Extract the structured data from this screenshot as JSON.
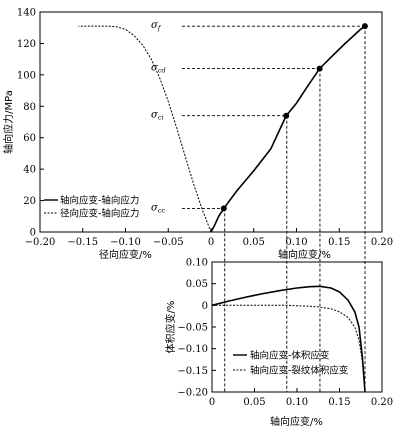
{
  "chart_data": [
    {
      "type": "line",
      "xlabel": "径向应变/%",
      "xlabel2": "轴向应变/%",
      "ylabel": "轴向应力/MPa",
      "xlim": [
        -0.2,
        0.2
      ],
      "ylim": [
        0,
        140
      ],
      "xticks": [
        "−0.20",
        "−0.15",
        "−0.10",
        "−0.05",
        "0",
        "0.05",
        "0.10",
        "0.15",
        "0.20"
      ],
      "yticks": [
        "0",
        "20",
        "40",
        "60",
        "80",
        "100",
        "120",
        "140"
      ],
      "grid": false,
      "legend_position": "bottom-left",
      "series": [
        {
          "name": "轴向应变-轴向应力",
          "style": "solid",
          "x": [
            0,
            0.004,
            0.009,
            0.015,
            0.03,
            0.05,
            0.07,
            0.088,
            0.1,
            0.112,
            0.127,
            0.14,
            0.155,
            0.165,
            0.175,
            0.18
          ],
          "y": [
            0,
            4,
            10,
            15,
            26,
            39,
            53,
            74,
            82,
            92,
            104,
            111,
            119,
            124,
            129,
            131
          ]
        },
        {
          "name": "径向应变-轴向应力",
          "style": "dashed",
          "x": [
            0,
            -0.01,
            -0.02,
            -0.03,
            -0.04,
            -0.05,
            -0.06,
            -0.07,
            -0.08,
            -0.09,
            -0.1,
            -0.11,
            -0.12,
            -0.13,
            -0.145,
            -0.155
          ],
          "y": [
            0,
            14,
            30,
            48,
            66,
            83,
            98,
            110,
            119,
            125,
            129,
            130.5,
            131,
            131,
            131,
            131
          ]
        }
      ],
      "markers": [
        {
          "label": "σ",
          "sub": "cc",
          "x": 0.015,
          "y": 15
        },
        {
          "label": "σ",
          "sub": "ci",
          "x": 0.088,
          "y": 74
        },
        {
          "label": "σ",
          "sub": "cd",
          "x": 0.127,
          "y": 104
        },
        {
          "label": "σ",
          "sub": "f",
          "x": 0.18,
          "y": 131
        }
      ]
    },
    {
      "type": "line",
      "xlabel": "轴向应变/%",
      "ylabel": "体积应变/%",
      "xlim": [
        0,
        0.2
      ],
      "ylim": [
        -0.2,
        0.1
      ],
      "xticks": [
        "0",
        "0.05",
        "0.10",
        "0.15",
        "0.20"
      ],
      "yticks": [
        "0.10",
        "0.05",
        "0",
        "−0.05",
        "−0.10",
        "−0.15",
        "−0.20"
      ],
      "grid": false,
      "legend_position": "bottom-left",
      "series": [
        {
          "name": "轴向应变-体积应变",
          "style": "solid",
          "x": [
            0,
            0.02,
            0.04,
            0.06,
            0.08,
            0.1,
            0.115,
            0.127,
            0.14,
            0.15,
            0.16,
            0.168,
            0.173,
            0.177,
            0.18
          ],
          "y": [
            0,
            0.01,
            0.019,
            0.027,
            0.034,
            0.04,
            0.043,
            0.044,
            0.04,
            0.031,
            0.012,
            -0.015,
            -0.05,
            -0.12,
            -0.2
          ]
        },
        {
          "name": "轴向应变-裂纹体积应变",
          "style": "dashed",
          "x": [
            0,
            0.02,
            0.05,
            0.088,
            0.1,
            0.115,
            0.127,
            0.14,
            0.15,
            0.16,
            0.168,
            0.173,
            0.177,
            0.18
          ],
          "y": [
            0,
            0,
            0,
            0,
            -0.001,
            -0.002,
            -0.004,
            -0.008,
            -0.015,
            -0.028,
            -0.05,
            -0.08,
            -0.13,
            -0.2
          ]
        }
      ]
    }
  ]
}
